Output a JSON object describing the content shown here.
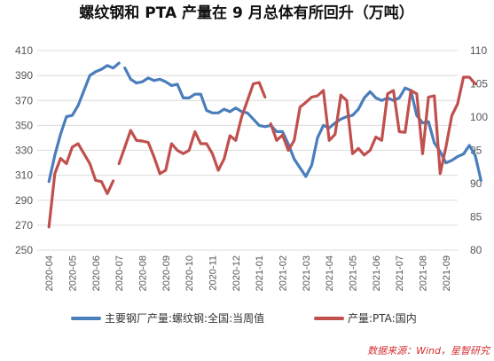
{
  "chart_data": {
    "type": "line",
    "title": "螺纹钢和 PTA 产量在 9 月总体有所回升（万吨）",
    "source": "数据来源：Wind，星智研究",
    "colors": {
      "series1": "#4a7ebb",
      "series2": "#c0504d"
    },
    "x_labels": [
      "2020-04",
      "2020-05",
      "2020-06",
      "2020-07",
      "2020-08",
      "2020-09",
      "2020-10",
      "2020-11",
      "2020-12",
      "2021-01",
      "2021-02",
      "2021-03",
      "2021-04",
      "2021-05",
      "2021-06",
      "2021-07",
      "2021-08",
      "2021-09"
    ],
    "y_left": {
      "ticks": [
        "410",
        "390",
        "370",
        "350",
        "330",
        "310",
        "290",
        "270",
        "250"
      ],
      "range": [
        250,
        410
      ]
    },
    "y_right": {
      "ticks": [
        "110",
        "105",
        "100",
        "95",
        "90",
        "85",
        "80"
      ],
      "range": [
        80,
        110
      ]
    },
    "legend": [
      "主要钢厂产量:螺纹钢:全国:当周值",
      "产量:PTA:国内"
    ],
    "series": [
      {
        "name": "主要钢厂产量:螺纹钢:全国:当周值",
        "axis": "left",
        "segments": [
          [
            [
              0.0,
              305
            ],
            [
              0.25,
              326
            ],
            [
              0.5,
              343
            ],
            [
              0.75,
              357
            ],
            [
              1.0,
              358
            ],
            [
              1.25,
              366
            ],
            [
              1.5,
              378
            ],
            [
              1.75,
              390
            ],
            [
              2.0,
              393
            ],
            [
              2.25,
              395
            ],
            [
              2.5,
              398
            ],
            [
              2.75,
              396
            ],
            [
              3.0,
              400
            ]
          ],
          [
            [
              3.25,
              396
            ],
            [
              3.5,
              387
            ],
            [
              3.75,
              384
            ],
            [
              4.0,
              385
            ],
            [
              4.25,
              388
            ],
            [
              4.5,
              386
            ],
            [
              4.75,
              387
            ],
            [
              5.0,
              385
            ],
            [
              5.25,
              382
            ],
            [
              5.5,
              383
            ],
            [
              5.75,
              372
            ],
            [
              6.0,
              372
            ],
            [
              6.25,
              375
            ],
            [
              6.5,
              375
            ],
            [
              6.75,
              362
            ],
            [
              7.0,
              360
            ],
            [
              7.25,
              360
            ],
            [
              7.5,
              363
            ],
            [
              7.75,
              361
            ],
            [
              8.0,
              364
            ],
            [
              8.25,
              361
            ],
            [
              8.5,
              360
            ],
            [
              8.75,
              355
            ],
            [
              9.0,
              350
            ],
            [
              9.25,
              349
            ],
            [
              9.5,
              350
            ],
            [
              9.75,
              345
            ],
            [
              10.0,
              345
            ],
            [
              10.25,
              335
            ],
            [
              10.5,
              323
            ],
            [
              10.75,
              316
            ],
            [
              11.0,
              309
            ],
            [
              11.25,
              318
            ],
            [
              11.5,
              340
            ],
            [
              11.75,
              350
            ],
            [
              12.0,
              348
            ],
            [
              12.25,
              352
            ],
            [
              12.5,
              355
            ],
            [
              12.75,
              357
            ],
            [
              13.0,
              358
            ],
            [
              13.25,
              363
            ],
            [
              13.5,
              372
            ],
            [
              13.75,
              377
            ],
            [
              14.0,
              372
            ],
            [
              14.25,
              370
            ],
            [
              14.5,
              372
            ],
            [
              14.75,
              370
            ],
            [
              15.0,
              372
            ],
            [
              15.25,
              380
            ],
            [
              15.5,
              378
            ],
            [
              15.75,
              358
            ],
            [
              16.0,
              352
            ],
            [
              16.25,
              353
            ],
            [
              16.5,
              336
            ],
            [
              16.75,
              329
            ],
            [
              17.0,
              320
            ],
            [
              17.25,
              322
            ],
            [
              17.5,
              325
            ],
            [
              17.75,
              327
            ],
            [
              18.0,
              334
            ],
            [
              18.25,
              326
            ],
            [
              18.5,
              306
            ]
          ]
        ]
      },
      {
        "name": "产量:PTA:国内",
        "axis": "right",
        "segments": [
          [
            [
              0.0,
              83.5
            ],
            [
              0.25,
              91.5
            ],
            [
              0.5,
              93.8
            ],
            [
              0.75,
              93.0
            ],
            [
              1.0,
              95.5
            ],
            [
              1.25,
              96.0
            ],
            [
              1.5,
              94.5
            ],
            [
              1.75,
              93.0
            ],
            [
              2.0,
              90.5
            ],
            [
              2.25,
              90.3
            ],
            [
              2.5,
              88.5
            ],
            [
              2.75,
              90.4
            ]
          ],
          [
            [
              3.0,
              93.0
            ],
            [
              3.25,
              95.5
            ],
            [
              3.5,
              98.0
            ],
            [
              3.75,
              96.5
            ],
            [
              4.0,
              96.4
            ],
            [
              4.25,
              96.2
            ],
            [
              4.5,
              94.0
            ],
            [
              4.75,
              91.5
            ],
            [
              5.0,
              92.0
            ],
            [
              5.25,
              96.0
            ],
            [
              5.5,
              95.0
            ],
            [
              5.75,
              94.5
            ],
            [
              6.0,
              95.0
            ],
            [
              6.25,
              97.8
            ],
            [
              6.5,
              96.0
            ],
            [
              6.75,
              96.0
            ],
            [
              7.0,
              94.5
            ],
            [
              7.25,
              92.0
            ],
            [
              7.5,
              93.7
            ],
            [
              7.75,
              97.2
            ],
            [
              8.0,
              96.5
            ],
            [
              8.25,
              100.0
            ],
            [
              8.5,
              102.5
            ],
            [
              8.75,
              105.0
            ],
            [
              9.0,
              105.2
            ],
            [
              9.25,
              103.0
            ]
          ],
          [
            [
              9.5,
              99.0
            ],
            [
              9.75,
              96.5
            ],
            [
              10.0,
              97.3
            ],
            [
              10.25,
              95.0
            ],
            [
              10.5,
              96.5
            ],
            [
              10.75,
              101.5
            ],
            [
              11.0,
              102.2
            ],
            [
              11.25,
              103.0
            ],
            [
              11.5,
              103.2
            ],
            [
              11.75,
              104.0
            ],
            [
              12.0,
              96.5
            ],
            [
              12.25,
              97.4
            ],
            [
              12.5,
              103.3
            ],
            [
              12.75,
              102.5
            ],
            [
              13.0,
              94.5
            ],
            [
              13.25,
              95.3
            ],
            [
              13.5,
              94.3
            ],
            [
              13.75,
              95.0
            ],
            [
              14.0,
              97.0
            ],
            [
              14.25,
              96.5
            ],
            [
              14.5,
              103.5
            ],
            [
              14.75,
              104.0
            ],
            [
              15.0,
              97.8
            ],
            [
              15.25,
              97.7
            ],
            [
              15.5,
              104.0
            ],
            [
              15.75,
              103.5
            ],
            [
              16.0,
              94.5
            ],
            [
              16.25,
              103.0
            ],
            [
              16.5,
              103.2
            ],
            [
              16.75,
              91.5
            ],
            [
              17.0,
              95.5
            ],
            [
              17.25,
              100.2
            ],
            [
              17.5,
              102.0
            ],
            [
              17.75,
              106.0
            ],
            [
              18.0,
              106.0
            ],
            [
              18.25,
              105.0
            ]
          ]
        ]
      }
    ]
  }
}
